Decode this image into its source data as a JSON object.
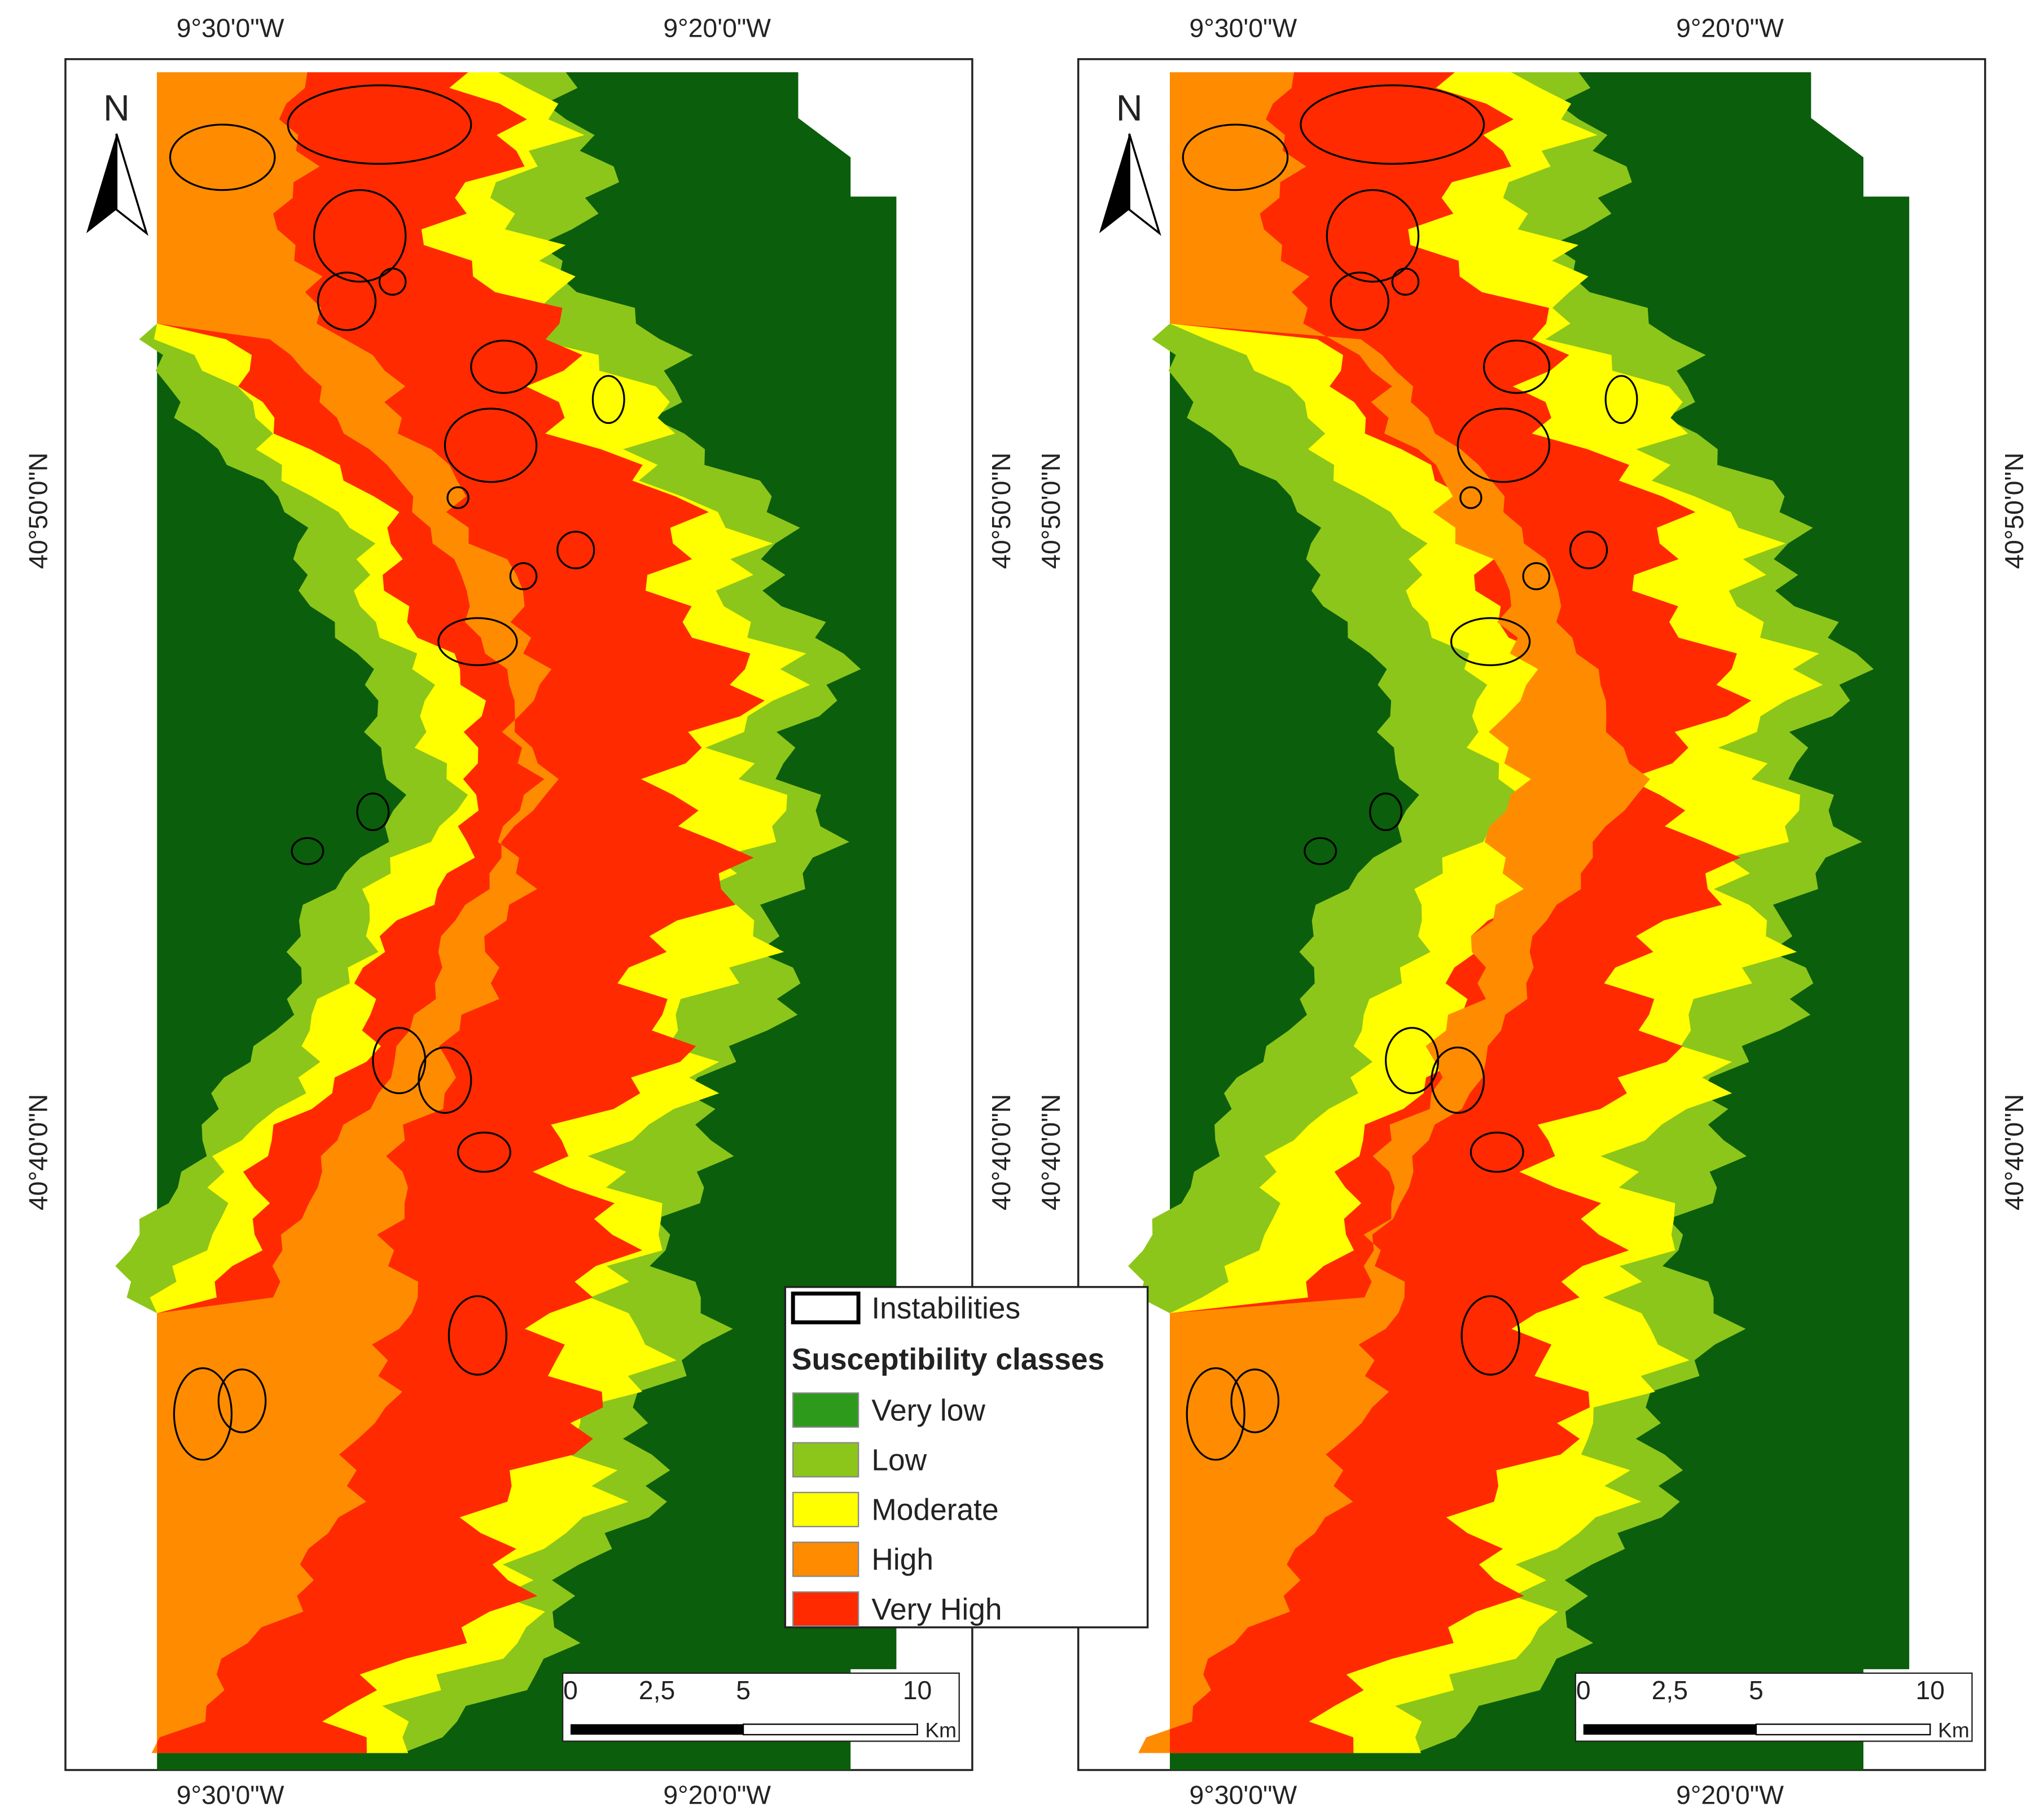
{
  "maps": [
    {
      "top_labels": [
        "9°30'0\"W",
        "9°20'0\"W"
      ],
      "bottom_labels": [
        "9°30'0\"W",
        "9°20'0\"W"
      ],
      "left_labels": [
        "40°50'0\"N",
        "40°40'0\"N"
      ],
      "right_labels": [
        "40°50'0\"N",
        "40°40'0\"N"
      ],
      "north": "N",
      "scale_ticks": [
        "0",
        "2,5",
        "5",
        "10"
      ],
      "scale_unit": "Km"
    },
    {
      "top_labels": [
        "9°30'0\"W",
        "9°20'0\"W"
      ],
      "bottom_labels": [
        "9°30'0\"W",
        "9°20'0\"W"
      ],
      "left_labels": [
        "40°50'0\"N",
        "40°40'0\"N"
      ],
      "right_labels": [
        "40°50'0\"N",
        "40°40'0\"N"
      ],
      "north": "N",
      "scale_ticks": [
        "0",
        "2,5",
        "5",
        "10"
      ],
      "scale_unit": "Km"
    }
  ],
  "legend": {
    "instabilities": "Instabilities",
    "title": "Susceptibility classes",
    "classes": [
      {
        "name": "Very low",
        "color": "#2e9a1c"
      },
      {
        "name": "Low",
        "color": "#8cc61a"
      },
      {
        "name": "Moderate",
        "color": "#ffff00"
      },
      {
        "name": "High",
        "color": "#ff8c00"
      },
      {
        "name": "Very High",
        "color": "#ff2a00"
      }
    ]
  }
}
